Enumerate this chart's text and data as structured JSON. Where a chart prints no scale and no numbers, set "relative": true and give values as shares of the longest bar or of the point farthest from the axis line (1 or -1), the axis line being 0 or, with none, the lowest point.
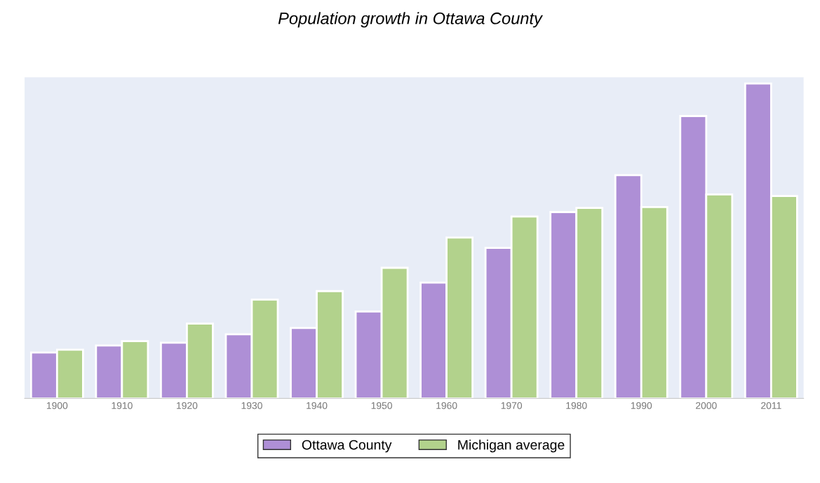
{
  "chart_data": {
    "type": "bar",
    "title": "Population growth in Ottawa County",
    "relative": true,
    "categories": [
      "1900",
      "1910",
      "1920",
      "1930",
      "1940",
      "1950",
      "1960",
      "1970",
      "1980",
      "1990",
      "2000",
      "2011"
    ],
    "series": [
      {
        "name": "Ottawa County",
        "color": "#ae8fd6",
        "values": [
          0.146,
          0.168,
          0.177,
          0.204,
          0.224,
          0.276,
          0.368,
          0.478,
          0.592,
          0.709,
          0.897,
          1
        ]
      },
      {
        "name": "Michigan average",
        "color": "#b2d28c",
        "values": [
          0.155,
          0.182,
          0.238,
          0.314,
          0.341,
          0.415,
          0.511,
          0.578,
          0.605,
          0.608,
          0.648,
          0.643
        ]
      }
    ],
    "legend": "bottom"
  }
}
